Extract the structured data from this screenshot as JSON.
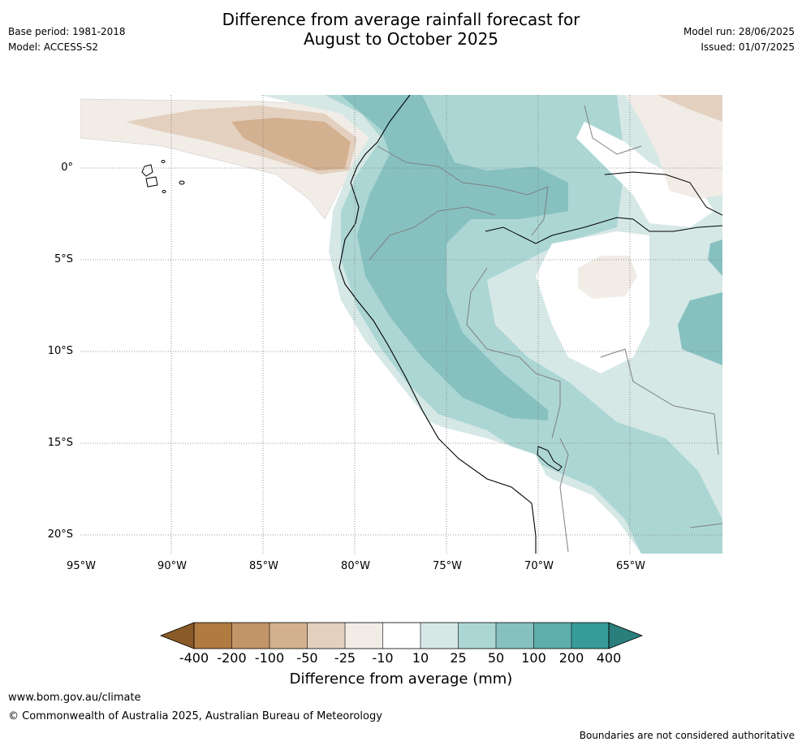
{
  "header": {
    "title_line1": "Difference from average rainfall forecast for",
    "title_line2": "August to October 2025",
    "base_period": "Base period: 1981-2018",
    "model": "Model: ACCESS-S2",
    "model_run": "Model run: 28/06/2025",
    "issued": "Issued: 01/07/2025"
  },
  "map": {
    "lat_labels": [
      "0°",
      "5°S",
      "10°S",
      "15°S",
      "20°S"
    ],
    "lon_labels": [
      "95°W",
      "90°W",
      "85°W",
      "80°W",
      "75°W",
      "70°W",
      "65°W"
    ],
    "gridlines": true
  },
  "colorbar": {
    "labels": [
      "-400",
      "-200",
      "-100",
      "-50",
      "-25",
      "-10",
      "10",
      "25",
      "50",
      "100",
      "200",
      "400"
    ],
    "colors": [
      "#8a5a27",
      "#b07a41",
      "#c29468",
      "#d3b08f",
      "#e3d0bf",
      "#f1ece6",
      "#ffffff",
      "#d5e8e6",
      "#acd6d4",
      "#86c1c0",
      "#5daeac",
      "#379b98",
      "#2a7e7b"
    ],
    "title": "Difference from average (mm)"
  },
  "footer": {
    "url": "www.bom.gov.au/climate",
    "copyright": "© Commonwealth of Australia 2025, Australian Bureau of Meteorology",
    "disclaimer": "Boundaries are not considered authoritative"
  }
}
